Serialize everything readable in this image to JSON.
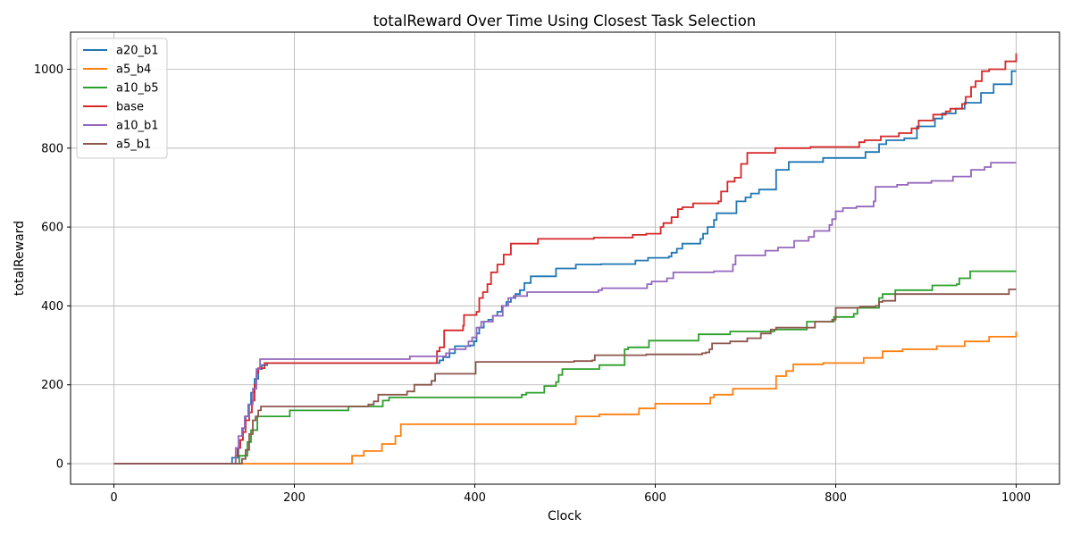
{
  "chart_data": {
    "type": "line",
    "title": "totalReward Over Time Using Closest Task Selection",
    "xlabel": "Clock",
    "ylabel": "totalReward",
    "xlim": [
      -48,
      1048
    ],
    "ylim": [
      -52,
      1094
    ],
    "xticks": [
      0,
      200,
      400,
      600,
      800,
      1000
    ],
    "yticks": [
      0,
      200,
      400,
      600,
      800,
      1000
    ],
    "grid": true,
    "legend_position": "top-left",
    "step": "post",
    "series": [
      {
        "name": "a20_b1",
        "color": "#1f77b4",
        "points": [
          [
            0,
            0
          ],
          [
            130,
            0
          ],
          [
            131,
            15
          ],
          [
            136,
            15
          ],
          [
            138,
            40
          ],
          [
            140,
            60
          ],
          [
            143,
            90
          ],
          [
            146,
            120
          ],
          [
            149,
            150
          ],
          [
            152,
            180
          ],
          [
            156,
            215
          ],
          [
            160,
            240
          ],
          [
            164,
            250
          ],
          [
            170,
            255
          ],
          [
            360,
            255
          ],
          [
            361,
            262
          ],
          [
            365,
            270
          ],
          [
            372,
            280
          ],
          [
            378,
            298
          ],
          [
            395,
            300
          ],
          [
            399,
            310
          ],
          [
            402,
            330
          ],
          [
            405,
            345
          ],
          [
            410,
            360
          ],
          [
            415,
            365
          ],
          [
            420,
            375
          ],
          [
            425,
            385
          ],
          [
            430,
            400
          ],
          [
            435,
            410
          ],
          [
            440,
            420
          ],
          [
            445,
            430
          ],
          [
            450,
            440
          ],
          [
            455,
            458
          ],
          [
            462,
            475
          ],
          [
            490,
            495
          ],
          [
            512,
            505
          ],
          [
            540,
            506
          ],
          [
            578,
            515
          ],
          [
            592,
            522
          ],
          [
            615,
            525
          ],
          [
            618,
            535
          ],
          [
            624,
            545
          ],
          [
            630,
            558
          ],
          [
            650,
            570
          ],
          [
            653,
            583
          ],
          [
            658,
            600
          ],
          [
            665,
            618
          ],
          [
            668,
            635
          ],
          [
            690,
            665
          ],
          [
            700,
            675
          ],
          [
            706,
            685
          ],
          [
            715,
            695
          ],
          [
            734,
            745
          ],
          [
            748,
            765
          ],
          [
            786,
            775
          ],
          [
            833,
            790
          ],
          [
            848,
            810
          ],
          [
            856,
            820
          ],
          [
            876,
            825
          ],
          [
            890,
            855
          ],
          [
            910,
            875
          ],
          [
            918,
            888
          ],
          [
            933,
            900
          ],
          [
            943,
            915
          ],
          [
            961,
            940
          ],
          [
            975,
            962
          ],
          [
            995,
            995
          ],
          [
            1000,
            995
          ]
        ]
      },
      {
        "name": "a5_b4",
        "color": "#ff7f0e",
        "points": [
          [
            0,
            0
          ],
          [
            263,
            0
          ],
          [
            264,
            20
          ],
          [
            277,
            32
          ],
          [
            297,
            50
          ],
          [
            312,
            70
          ],
          [
            318,
            100
          ],
          [
            510,
            100
          ],
          [
            512,
            120
          ],
          [
            538,
            125
          ],
          [
            582,
            140
          ],
          [
            600,
            152
          ],
          [
            656,
            152
          ],
          [
            661,
            168
          ],
          [
            665,
            175
          ],
          [
            686,
            190
          ],
          [
            734,
            222
          ],
          [
            745,
            235
          ],
          [
            753,
            252
          ],
          [
            786,
            255
          ],
          [
            831,
            268
          ],
          [
            852,
            285
          ],
          [
            874,
            290
          ],
          [
            912,
            298
          ],
          [
            943,
            310
          ],
          [
            970,
            322
          ],
          [
            1000,
            335
          ]
        ]
      },
      {
        "name": "a10_b5",
        "color": "#2ca02c",
        "points": [
          [
            0,
            0
          ],
          [
            137,
            0
          ],
          [
            139,
            20
          ],
          [
            148,
            55
          ],
          [
            152,
            85
          ],
          [
            159,
            120
          ],
          [
            195,
            135
          ],
          [
            260,
            145
          ],
          [
            298,
            160
          ],
          [
            305,
            168
          ],
          [
            452,
            175
          ],
          [
            457,
            180
          ],
          [
            477,
            197
          ],
          [
            490,
            207
          ],
          [
            493,
            225
          ],
          [
            497,
            240
          ],
          [
            538,
            250
          ],
          [
            566,
            290
          ],
          [
            570,
            295
          ],
          [
            593,
            312
          ],
          [
            648,
            328
          ],
          [
            683,
            335
          ],
          [
            732,
            340
          ],
          [
            768,
            360
          ],
          [
            798,
            372
          ],
          [
            820,
            380
          ],
          [
            824,
            395
          ],
          [
            848,
            420
          ],
          [
            852,
            430
          ],
          [
            866,
            440
          ],
          [
            907,
            452
          ],
          [
            934,
            455
          ],
          [
            937,
            470
          ],
          [
            949,
            488
          ],
          [
            1000,
            488
          ]
        ]
      },
      {
        "name": "base",
        "color": "#d62728",
        "points": [
          [
            0,
            0
          ],
          [
            133,
            0
          ],
          [
            135,
            20
          ],
          [
            137,
            40
          ],
          [
            140,
            60
          ],
          [
            143,
            80
          ],
          [
            146,
            110
          ],
          [
            150,
            130
          ],
          [
            153,
            160
          ],
          [
            156,
            200
          ],
          [
            158,
            230
          ],
          [
            160,
            242
          ],
          [
            167,
            255
          ],
          [
            356,
            255
          ],
          [
            358,
            285
          ],
          [
            361,
            295
          ],
          [
            366,
            338
          ],
          [
            387,
            350
          ],
          [
            388,
            377
          ],
          [
            402,
            385
          ],
          [
            405,
            420
          ],
          [
            409,
            435
          ],
          [
            414,
            455
          ],
          [
            418,
            485
          ],
          [
            425,
            505
          ],
          [
            432,
            530
          ],
          [
            440,
            558
          ],
          [
            470,
            570
          ],
          [
            532,
            573
          ],
          [
            575,
            580
          ],
          [
            590,
            583
          ],
          [
            606,
            600
          ],
          [
            609,
            610
          ],
          [
            618,
            625
          ],
          [
            625,
            645
          ],
          [
            630,
            650
          ],
          [
            642,
            660
          ],
          [
            670,
            665
          ],
          [
            673,
            690
          ],
          [
            680,
            715
          ],
          [
            688,
            725
          ],
          [
            695,
            760
          ],
          [
            702,
            788
          ],
          [
            733,
            800
          ],
          [
            772,
            803
          ],
          [
            826,
            815
          ],
          [
            832,
            820
          ],
          [
            850,
            830
          ],
          [
            870,
            838
          ],
          [
            884,
            850
          ],
          [
            892,
            870
          ],
          [
            908,
            885
          ],
          [
            922,
            893
          ],
          [
            927,
            900
          ],
          [
            940,
            912
          ],
          [
            944,
            930
          ],
          [
            950,
            955
          ],
          [
            955,
            970
          ],
          [
            962,
            995
          ],
          [
            970,
            1000
          ],
          [
            988,
            1020
          ],
          [
            1000,
            1040
          ]
        ]
      },
      {
        "name": "a10_b1",
        "color": "#9467bd",
        "points": [
          [
            0,
            0
          ],
          [
            133,
            0
          ],
          [
            135,
            40
          ],
          [
            138,
            70
          ],
          [
            142,
            90
          ],
          [
            145,
            120
          ],
          [
            150,
            150
          ],
          [
            154,
            190
          ],
          [
            158,
            240
          ],
          [
            162,
            265
          ],
          [
            326,
            265
          ],
          [
            328,
            272
          ],
          [
            368,
            280
          ],
          [
            372,
            290
          ],
          [
            390,
            298
          ],
          [
            393,
            310
          ],
          [
            397,
            320
          ],
          [
            402,
            345
          ],
          [
            407,
            360
          ],
          [
            420,
            375
          ],
          [
            431,
            400
          ],
          [
            437,
            420
          ],
          [
            443,
            425
          ],
          [
            458,
            435
          ],
          [
            537,
            440
          ],
          [
            541,
            445
          ],
          [
            591,
            455
          ],
          [
            596,
            462
          ],
          [
            613,
            470
          ],
          [
            620,
            485
          ],
          [
            665,
            488
          ],
          [
            686,
            505
          ],
          [
            689,
            528
          ],
          [
            722,
            540
          ],
          [
            736,
            548
          ],
          [
            754,
            565
          ],
          [
            770,
            575
          ],
          [
            776,
            590
          ],
          [
            793,
            605
          ],
          [
            796,
            620
          ],
          [
            800,
            640
          ],
          [
            808,
            648
          ],
          [
            823,
            652
          ],
          [
            842,
            665
          ],
          [
            844,
            702
          ],
          [
            868,
            707
          ],
          [
            880,
            712
          ],
          [
            906,
            717
          ],
          [
            930,
            728
          ],
          [
            950,
            745
          ],
          [
            965,
            752
          ],
          [
            972,
            763
          ],
          [
            1000,
            763
          ]
        ]
      },
      {
        "name": "a5_b1",
        "color": "#8c564b",
        "points": [
          [
            0,
            0
          ],
          [
            140,
            0
          ],
          [
            142,
            12
          ],
          [
            146,
            35
          ],
          [
            150,
            75
          ],
          [
            154,
            110
          ],
          [
            157,
            120
          ],
          [
            160,
            135
          ],
          [
            163,
            145
          ],
          [
            279,
            145
          ],
          [
            282,
            150
          ],
          [
            288,
            158
          ],
          [
            293,
            175
          ],
          [
            325,
            183
          ],
          [
            333,
            200
          ],
          [
            352,
            210
          ],
          [
            356,
            228
          ],
          [
            398,
            228
          ],
          [
            401,
            258
          ],
          [
            510,
            260
          ],
          [
            530,
            262
          ],
          [
            533,
            275
          ],
          [
            590,
            277
          ],
          [
            652,
            280
          ],
          [
            656,
            282
          ],
          [
            660,
            290
          ],
          [
            663,
            305
          ],
          [
            683,
            310
          ],
          [
            702,
            318
          ],
          [
            717,
            330
          ],
          [
            728,
            340
          ],
          [
            734,
            345
          ],
          [
            777,
            360
          ],
          [
            796,
            365
          ],
          [
            800,
            395
          ],
          [
            827,
            398
          ],
          [
            844,
            400
          ],
          [
            848,
            410
          ],
          [
            852,
            413
          ],
          [
            866,
            430
          ],
          [
            990,
            430
          ],
          [
            992,
            442
          ],
          [
            1000,
            442
          ]
        ]
      }
    ]
  }
}
